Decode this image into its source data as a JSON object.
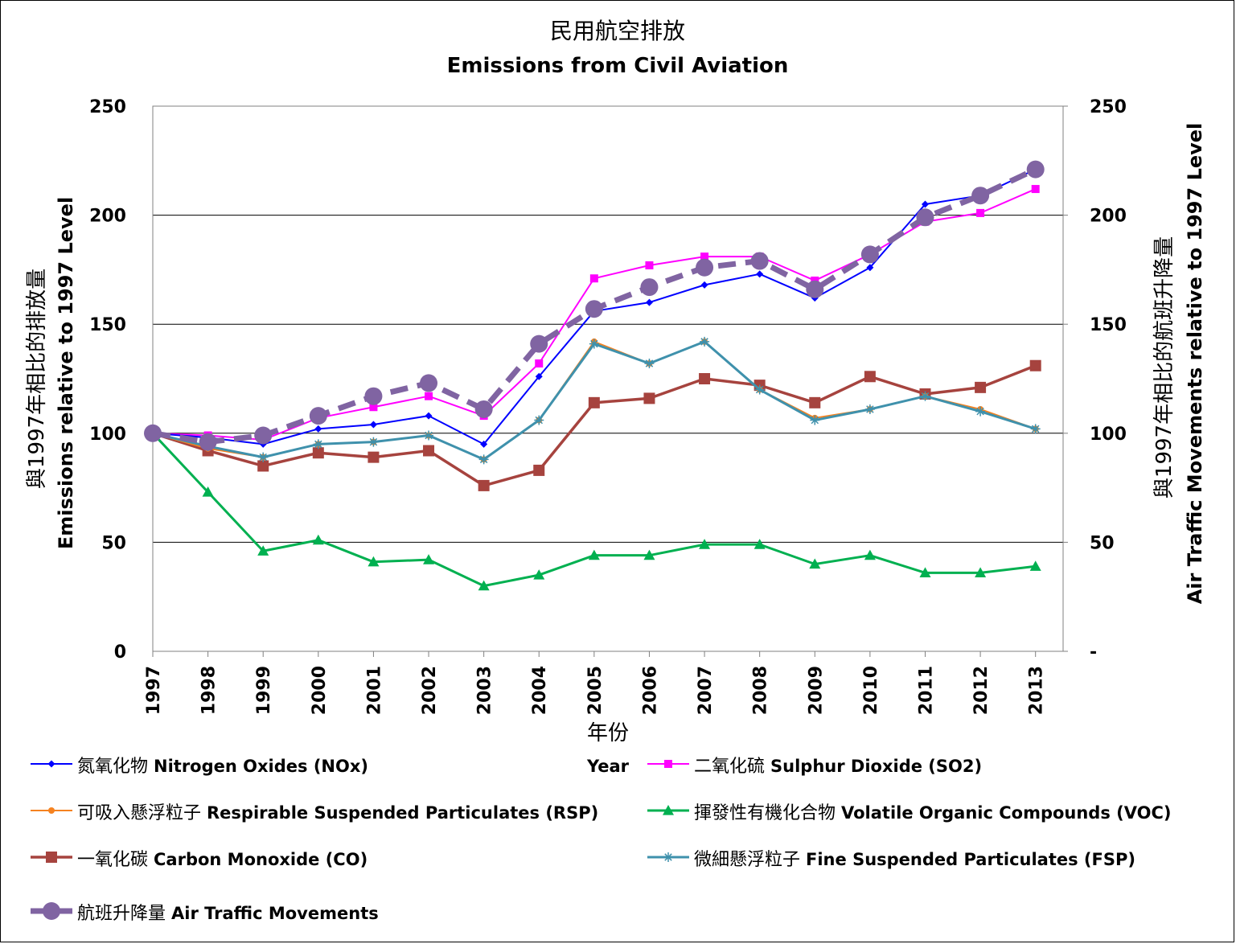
{
  "chart_data": {
    "type": "line",
    "title": "民用航空排放",
    "subtitle": "Emissions from Civil Aviation",
    "xlabel_zh": "年份",
    "xlabel_en": "Year",
    "ylabel_left_zh": "與1997年相比的排放量",
    "ylabel_left_en": "Emissions relative to 1997 Level",
    "ylabel_right_zh": "與1997年相比的航班升降量",
    "ylabel_right_en": "Air Traffic Movements relative to 1997 Level",
    "ylim": [
      0,
      250
    ],
    "yticks_left": [
      "0",
      "50",
      "100",
      "150",
      "200",
      "250"
    ],
    "yticks_right": [
      "-",
      "50",
      "100",
      "150",
      "200",
      "250"
    ],
    "grid": true,
    "x": [
      "1997",
      "1998",
      "1999",
      "2000",
      "2001",
      "2002",
      "2003",
      "2004",
      "2005",
      "2006",
      "2007",
      "2008",
      "2009",
      "2010",
      "2011",
      "2012",
      "2013"
    ],
    "series": [
      {
        "name_zh": "氮氧化物",
        "name_en": "Nitrogen Oxides (NOx)",
        "color": "#0000FF",
        "marker": "diamond",
        "dash": false,
        "width": 2,
        "values": [
          100,
          98,
          95,
          102,
          104,
          108,
          95,
          126,
          156,
          160,
          168,
          173,
          162,
          176,
          205,
          209,
          221
        ]
      },
      {
        "name_zh": "二氧化硫",
        "name_en": "Sulphur Dioxide (SO2)",
        "color": "#FF00FF",
        "marker": "square",
        "dash": false,
        "width": 2,
        "values": [
          100,
          99,
          97,
          107,
          112,
          117,
          108,
          132,
          171,
          177,
          181,
          181,
          170,
          182,
          197,
          201,
          212
        ]
      },
      {
        "name_zh": "可吸入懸浮粒子",
        "name_en": "Respirable Suspended Particulates (RSP)",
        "color": "#F58220",
        "marker": "circle",
        "dash": false,
        "width": 2,
        "values": [
          100,
          93,
          89,
          95,
          96,
          99,
          88,
          106,
          142,
          132,
          142,
          120,
          107,
          111,
          117,
          111,
          102
        ]
      },
      {
        "name_zh": "揮發性有機化合物",
        "name_en": "Volatile Organic Compounds (VOC)",
        "color": "#00B050",
        "marker": "triangle",
        "dash": false,
        "width": 3,
        "values": [
          100,
          73,
          46,
          51,
          41,
          42,
          30,
          35,
          44,
          44,
          49,
          49,
          40,
          44,
          36,
          36,
          39
        ]
      },
      {
        "name_zh": "一氧化碳",
        "name_en": "Carbon Monoxide (CO)",
        "color": "#A6433E",
        "marker": "square",
        "dash": false,
        "width": 3.5,
        "values": [
          100,
          92,
          85,
          91,
          89,
          92,
          76,
          83,
          114,
          116,
          125,
          122,
          114,
          126,
          118,
          121,
          131
        ]
      },
      {
        "name_zh": "微細懸浮粒子",
        "name_en": "Fine Suspended Particulates (FSP)",
        "color": "#3F91AC",
        "marker": "star",
        "dash": false,
        "width": 3,
        "values": [
          100,
          94,
          89,
          95,
          96,
          99,
          88,
          106,
          141,
          132,
          142,
          120,
          106,
          111,
          117,
          110,
          102
        ]
      },
      {
        "name_zh": "航班升降量",
        "name_en": "Air Traffic Movements",
        "color": "#8064A2",
        "marker": "circle",
        "dash": true,
        "width": 7,
        "values": [
          100,
          96,
          99,
          108,
          117,
          123,
          111,
          141,
          157,
          167,
          176,
          179,
          166,
          182,
          199,
          209,
          221
        ]
      }
    ],
    "legend_placement": "bottom"
  }
}
